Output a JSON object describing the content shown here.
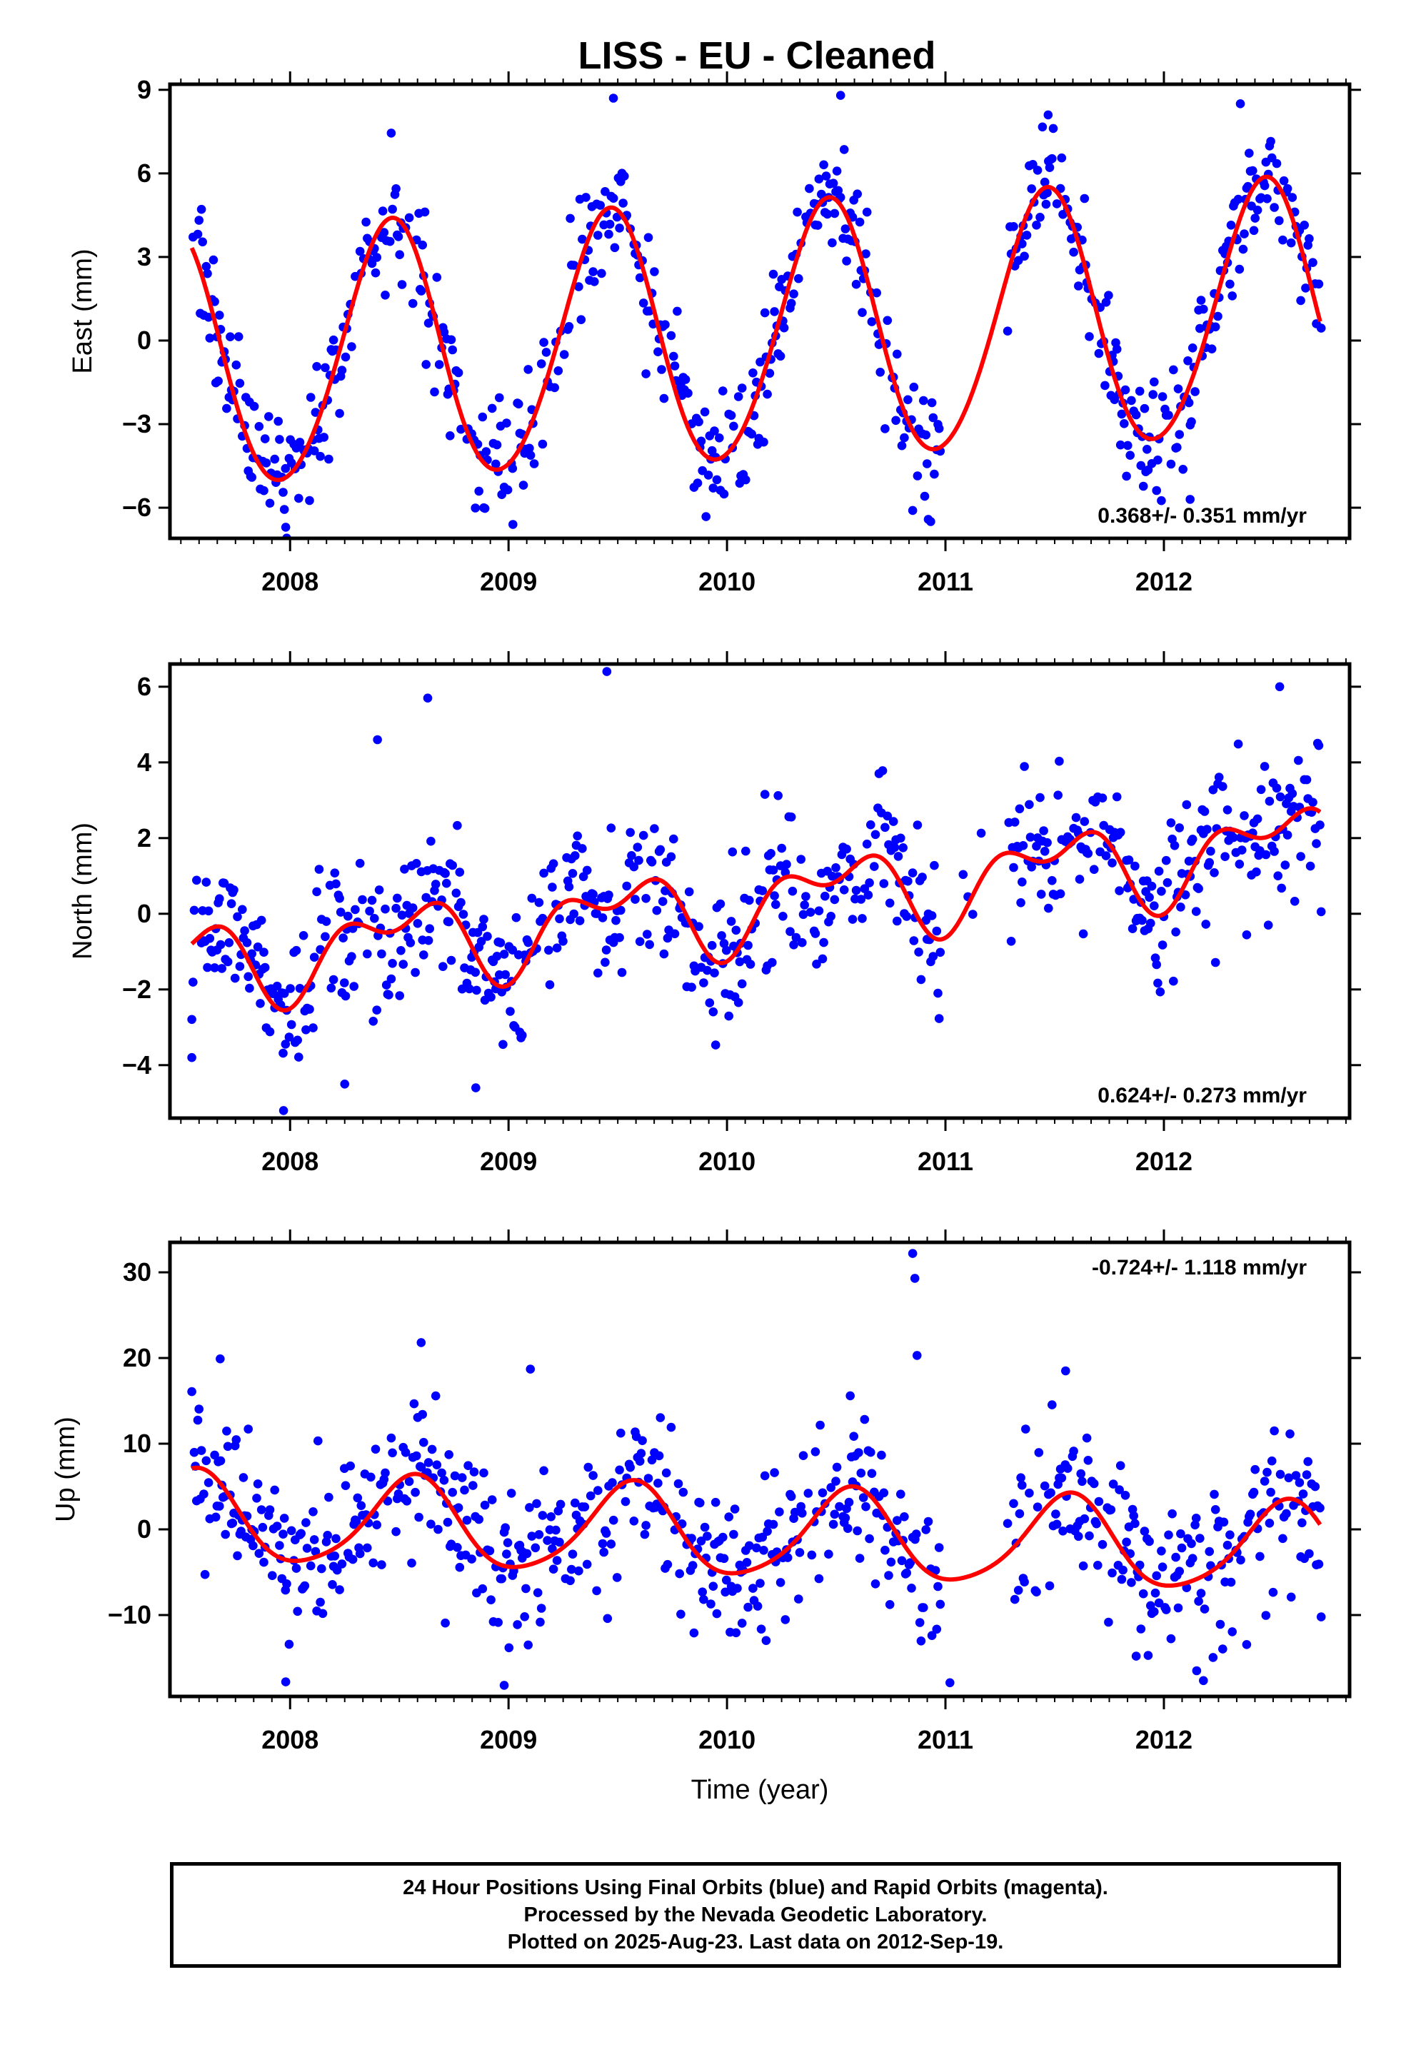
{
  "title": "LISS  - EU - Cleaned",
  "colors": {
    "data_points": "#0000ff",
    "fit_line": "#ff0000",
    "axes": "#000000"
  },
  "chart_data": [
    {
      "type": "scatter",
      "panel": "east",
      "ylabel": "East (mm)",
      "xlabel": "",
      "xlim": [
        2007.45,
        2012.85
      ],
      "ylim": [
        -7.1,
        9.2
      ],
      "yticks": [
        9,
        6,
        3,
        0,
        -3,
        -6
      ],
      "ytick_labels": [
        "9",
        "6",
        "3",
        "0",
        "−3",
        "−6"
      ],
      "xticks": [
        2008,
        2009,
        2010,
        2011,
        2012
      ],
      "xtick_labels": [
        "2008",
        "2009",
        "2010",
        "2011",
        "2012"
      ],
      "rate_text": "0.368+/- 0.351 mm/yr",
      "rate_position": "bottom-right",
      "fit": {
        "offset": 0.1,
        "slope": 0.368,
        "ref_year": 2010.0,
        "annual_amplitude": 4.6,
        "annual_phase": 0.46,
        "semiannual_amplitude": 0.3,
        "semiannual_phase": 0.0
      },
      "scatter_sd": 1.1,
      "outliers": [
        [
          2009.48,
          8.7
        ],
        [
          2010.52,
          8.8
        ],
        [
          2011.47,
          8.1
        ],
        [
          2012.35,
          8.5
        ],
        [
          2010.85,
          -6.1
        ],
        [
          2007.98,
          -6.7
        ],
        [
          2009.02,
          -6.6
        ],
        [
          2012.12,
          -5.7
        ]
      ],
      "gaps": [
        [
          2010.98,
          2011.28
        ]
      ]
    },
    {
      "type": "scatter",
      "panel": "north",
      "ylabel": "North (mm)",
      "xlabel": "",
      "xlim": [
        2007.45,
        2012.85
      ],
      "ylim": [
        -5.4,
        6.6
      ],
      "yticks": [
        6,
        4,
        2,
        0,
        -2,
        -4
      ],
      "ytick_labels": [
        "6",
        "4",
        "2",
        "0",
        "−2",
        "−4"
      ],
      "xticks": [
        2008,
        2009,
        2010,
        2011,
        2012
      ],
      "xtick_labels": [
        "2008",
        "2009",
        "2010",
        "2011",
        "2012"
      ],
      "rate_text": "0.624+/- 0.273 mm/yr",
      "rate_position": "bottom-right",
      "fit": {
        "offset": 0.2,
        "slope": 0.624,
        "ref_year": 2010.0,
        "annual_amplitude": 0.9,
        "annual_phase": 0.5,
        "semiannual_amplitude": 0.6,
        "semiannual_phase": 0.22
      },
      "scatter_sd": 1.0,
      "outliers": [
        [
          2009.45,
          6.4
        ],
        [
          2008.63,
          5.7
        ],
        [
          2008.4,
          4.6
        ],
        [
          2012.53,
          6.0
        ],
        [
          2007.97,
          -5.2
        ],
        [
          2008.25,
          -4.5
        ],
        [
          2008.85,
          -4.6
        ],
        [
          2007.55,
          -3.8
        ]
      ],
      "gaps": [
        [
          2010.98,
          2011.28
        ]
      ]
    },
    {
      "type": "scatter",
      "panel": "up",
      "ylabel": "Up (mm)",
      "xlabel": "Time (year)",
      "xlim": [
        2007.45,
        2012.85
      ],
      "ylim": [
        -19.5,
        33.5
      ],
      "yticks": [
        30,
        20,
        10,
        0,
        -10
      ],
      "ytick_labels": [
        "30",
        "20",
        "10",
        "0",
        "−10"
      ],
      "xticks": [
        2008,
        2009,
        2010,
        2011,
        2012
      ],
      "xtick_labels": [
        "2008",
        "2009",
        "2010",
        "2011",
        "2012"
      ],
      "rate_text": "-0.724+/- 1.118 mm/yr",
      "rate_position": "top-right",
      "fit": {
        "offset": -0.5,
        "slope": -0.724,
        "ref_year": 2010.0,
        "annual_amplitude": 5.2,
        "annual_phase": 0.56,
        "semiannual_amplitude": 0.8,
        "semiannual_phase": 0.1
      },
      "scatter_sd": 4.5,
      "outliers": [
        [
          2010.85,
          32.2
        ],
        [
          2010.86,
          29.3
        ],
        [
          2010.87,
          20.3
        ],
        [
          2008.6,
          21.8
        ],
        [
          2007.68,
          19.9
        ],
        [
          2009.1,
          18.7
        ],
        [
          2011.55,
          18.5
        ],
        [
          2007.98,
          -17.8
        ],
        [
          2008.98,
          -18.2
        ],
        [
          2012.15,
          -16.5
        ]
      ],
      "gaps": [
        [
          2010.98,
          2011.28
        ]
      ]
    }
  ],
  "caption": {
    "line1": "24 Hour Positions Using Final Orbits (blue) and Rapid Orbits (magenta).",
    "line2": "Processed by the Nevada Geodetic Laboratory.",
    "line3": "Plotted on 2025-Aug-23. Last data on 2012-Sep-19."
  }
}
